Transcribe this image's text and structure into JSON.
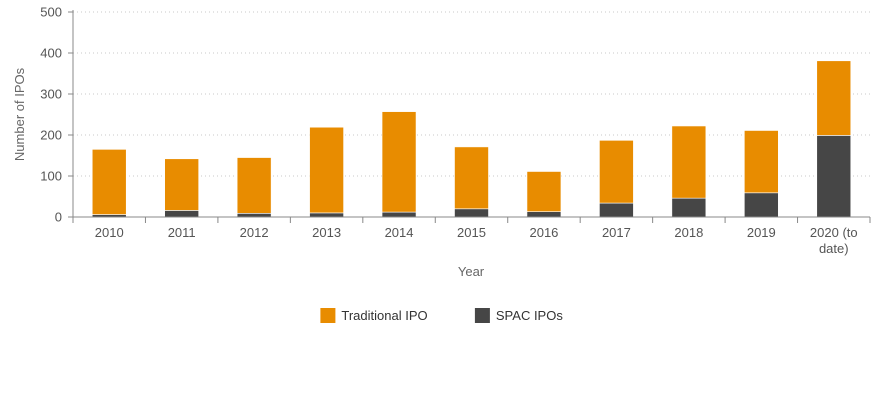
{
  "chart_data": {
    "type": "bar",
    "stacked": true,
    "categories": [
      "2010",
      "2011",
      "2012",
      "2013",
      "2014",
      "2015",
      "2016",
      "2017",
      "2018",
      "2019",
      "2020 (to date)"
    ],
    "series": [
      {
        "name": "SPAC IPOs",
        "color": "#464646",
        "values": [
          6,
          16,
          9,
          10,
          12,
          20,
          13,
          34,
          46,
          59,
          199
        ]
      },
      {
        "name": "Traditional IPO",
        "color": "#e88c00",
        "values": [
          159,
          126,
          136,
          209,
          245,
          151,
          98,
          153,
          176,
          152,
          182
        ]
      }
    ],
    "title": "",
    "xlabel": "Year",
    "ylabel": "Number of IPOs",
    "ylim": [
      0,
      500
    ],
    "yticks": [
      0,
      100,
      200,
      300,
      400,
      500
    ],
    "grid": true,
    "legend": {
      "position": "bottom",
      "order": [
        "Traditional IPO",
        "SPAC IPOs"
      ]
    }
  }
}
